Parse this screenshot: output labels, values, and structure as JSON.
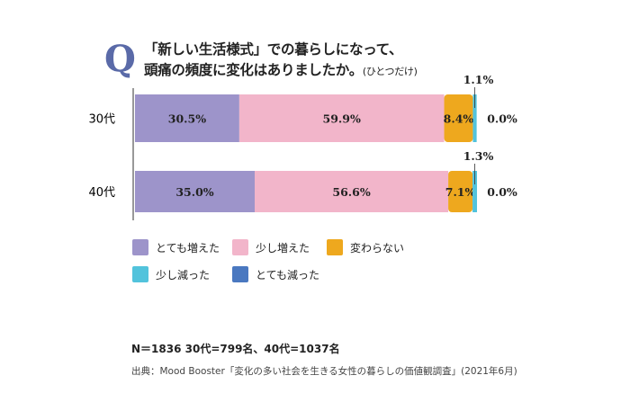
{
  "chart_data": {
    "type": "bar",
    "orientation": "horizontal-stacked",
    "title_mark": "Q",
    "title_line1": "「新しい生活様式」での暮らしになって、",
    "title_line2": "頭痛の頻度に変化はありましたか。",
    "title_note": "(ひとつだけ)",
    "categories": [
      "30代",
      "40代"
    ],
    "series": [
      {
        "name": "とても増えた",
        "color": "#9d94ca",
        "values": [
          30.5,
          35.0
        ]
      },
      {
        "name": "少し増えた",
        "color": "#f2b5ca",
        "values": [
          59.9,
          56.6
        ]
      },
      {
        "name": "変わらない",
        "color": "#eea81e",
        "values": [
          8.4,
          7.1
        ]
      },
      {
        "name": "少し減った",
        "color": "#52c3dc",
        "values": [
          1.1,
          1.3
        ]
      },
      {
        "name": "とても減った",
        "color": "#4a78c0",
        "values": [
          0.0,
          0.0
        ]
      }
    ],
    "value_labels": [
      [
        "30.5%",
        "59.9%",
        "8.4%",
        "1.1%",
        "0.0%"
      ],
      [
        "35.0%",
        "56.6%",
        "7.1%",
        "1.3%",
        "0.0%"
      ]
    ],
    "xlim": [
      0,
      100
    ],
    "legend_position": "bottom-left"
  },
  "footer": {
    "sample": "N＝1836 30代=799名、40代=1037名",
    "source": "出典：Mood Booster「変化の多い社会を生きる女性の暮らしの価値観調査」(2021年6月)"
  }
}
